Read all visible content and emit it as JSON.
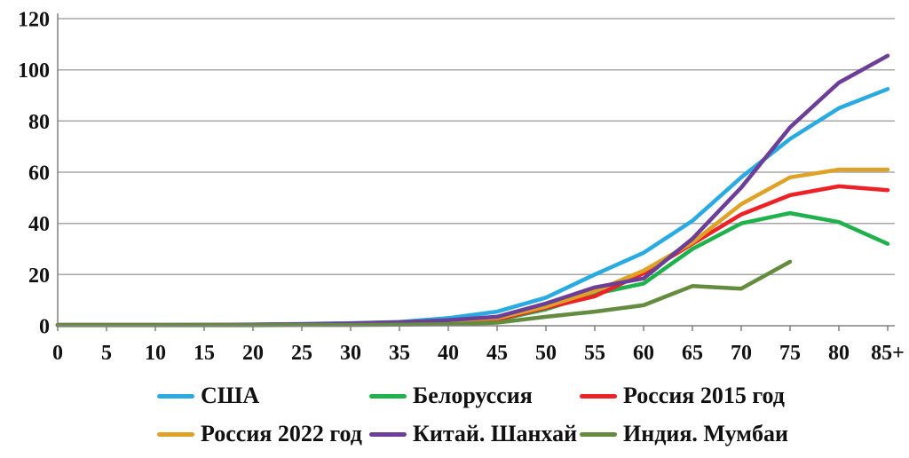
{
  "chart_data": {
    "type": "line",
    "title": "",
    "xlabel": "",
    "ylabel": "",
    "categories": [
      "0",
      "5",
      "10",
      "15",
      "20",
      "25",
      "30",
      "35",
      "40",
      "45",
      "50",
      "55",
      "60",
      "65",
      "70",
      "75",
      "80",
      "85+"
    ],
    "ylim": [
      0,
      120
    ],
    "yticks": [
      0,
      20,
      40,
      60,
      80,
      100,
      120
    ],
    "grid": "horizontal",
    "legend_position": "bottom",
    "axis_color": "#808080",
    "grid_color": "#a8a8a8",
    "series": [
      {
        "key": "usa",
        "name": "США",
        "color": "#29abe2",
        "values": [
          0.3,
          0.3,
          0.3,
          0.4,
          0.5,
          0.7,
          1,
          1.5,
          3,
          5.5,
          11,
          20,
          28.5,
          41,
          58,
          73,
          85,
          92.5
        ]
      },
      {
        "key": "belarus",
        "name": "Белоруссия",
        "color": "#1fb14c",
        "values": [
          0.3,
          0.3,
          0.3,
          0.3,
          0.4,
          0.5,
          0.8,
          1,
          1.8,
          2.3,
          6.4,
          12.5,
          16.5,
          30,
          40,
          44,
          40.5,
          32
        ]
      },
      {
        "key": "russia-2015",
        "name": "Россия 2015 год",
        "color": "#ec2227",
        "values": [
          0.3,
          0.3,
          0.3,
          0.3,
          0.4,
          0.5,
          0.8,
          1.2,
          1.8,
          2.5,
          7,
          11.5,
          20.5,
          32,
          43.5,
          51,
          54.5,
          53
        ]
      },
      {
        "key": "russia-2022",
        "name": "Россия 2022 год",
        "color": "#dfa227",
        "values": [
          0.3,
          0.3,
          0.3,
          0.3,
          0.4,
          0.5,
          0.8,
          1.2,
          2,
          3,
          7.5,
          13.5,
          21.5,
          32.5,
          47.5,
          58,
          61,
          61
        ]
      },
      {
        "key": "china-shanghai",
        "name": "Китай. Шанхай",
        "color": "#6c3e98",
        "values": [
          0.3,
          0.3,
          0.3,
          0.3,
          0.4,
          0.6,
          0.9,
          1.4,
          2.2,
          3.5,
          8.7,
          15,
          18.5,
          34,
          54,
          77.5,
          95,
          105.5
        ]
      },
      {
        "key": "india-mumbai",
        "name": "Индия. Мумбаи",
        "color": "#648c3f",
        "values": [
          0.2,
          0.2,
          0.2,
          0.2,
          0.2,
          0.3,
          0.3,
          0.4,
          0.6,
          1.2,
          3.5,
          5.5,
          8,
          15.5,
          14.5,
          25
        ]
      }
    ]
  }
}
